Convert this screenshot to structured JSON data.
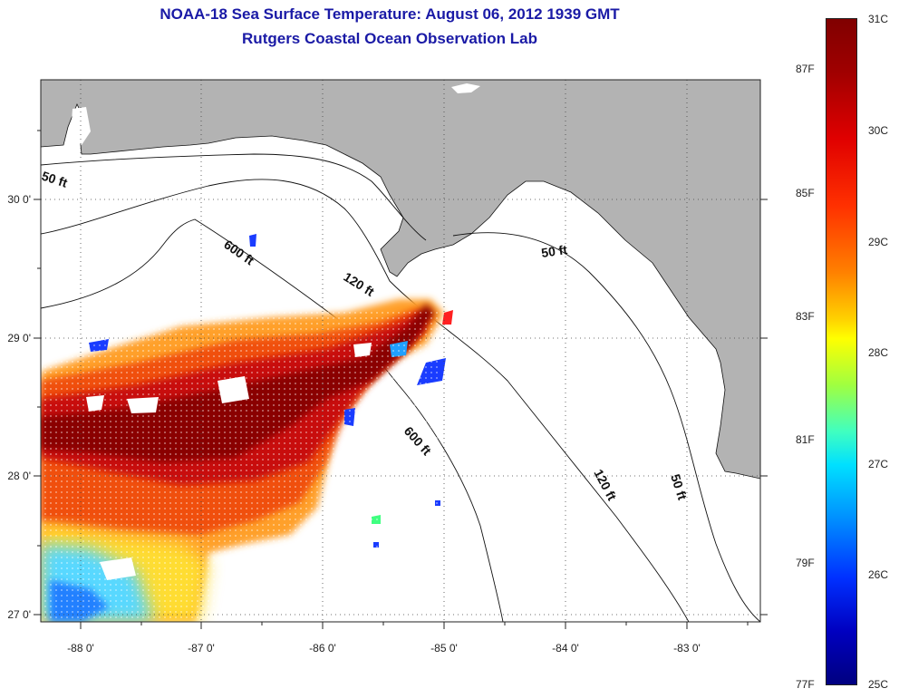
{
  "title_line1": "NOAA-18 Sea Surface Temperature:  August 06, 2012 1939 GMT",
  "title_line2": "Rutgers Coastal Ocean Observation Lab",
  "longitude_labels": [
    "-88 0'",
    "-87 0'",
    "-86 0'",
    "-85 0'",
    "-84 0'",
    "-83 0'"
  ],
  "latitude_labels": [
    "30 0'",
    "29 0'",
    "28 0'",
    "27 0'"
  ],
  "contour_labels": [
    "50 ft",
    "600 ft",
    "120 ft",
    "50 ft",
    "600 ft",
    "120 ft",
    "50 ft"
  ],
  "colorbar": {
    "celsius": [
      "31C",
      "30C",
      "29C",
      "28C",
      "27C",
      "26C",
      "25C"
    ],
    "fahrenheit": [
      "87F",
      "85F",
      "83F",
      "81F",
      "79F",
      "77F"
    ]
  },
  "colors": {
    "title": "#1a1aa6",
    "land": "#b3b3b3",
    "ocean_blank": "#ffffff"
  }
}
